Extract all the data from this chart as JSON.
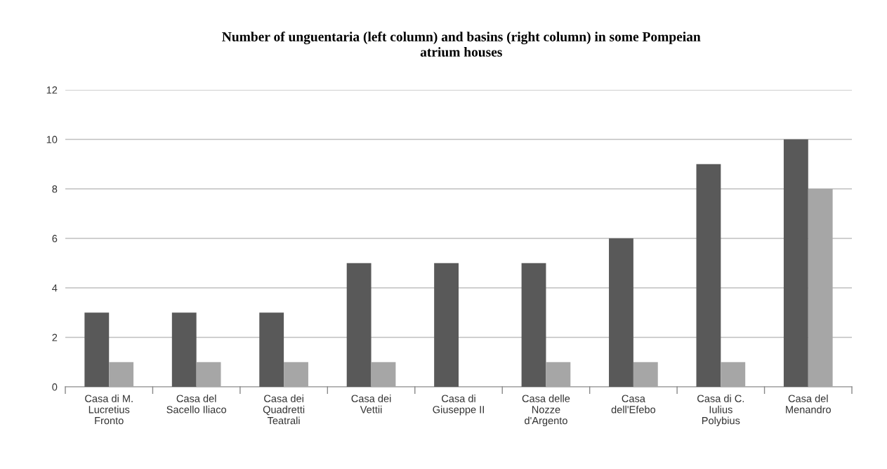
{
  "chart_data": {
    "type": "bar",
    "title": "Number of unguentaria (left column) and basins (right column) in some Pompeian\natrium houses",
    "categories": [
      "Casa di M.\nLucretius\nFronto",
      "Casa del\nSacello Iliaco",
      "Casa dei\nQuadretti\nTeatrali",
      "Casa dei\nVettii",
      "Casa di\nGiuseppe II",
      "Casa delle\nNozze\nd'Argento",
      "Casa\ndell'Efebo",
      "Casa di C.\nIulius\nPolybius",
      "Casa del\nMenandro"
    ],
    "series": [
      {
        "color": "#595959",
        "values": [
          3,
          3,
          3,
          5,
          5,
          5,
          6,
          9,
          10
        ]
      },
      {
        "color": "#a6a6a6",
        "values": [
          1,
          1,
          1,
          1,
          0,
          1,
          1,
          1,
          8
        ]
      }
    ],
    "ylim": [
      0,
      12
    ],
    "yticks": [
      0,
      2,
      4,
      6,
      8,
      10,
      12
    ],
    "grid": "y",
    "legend": false
  }
}
